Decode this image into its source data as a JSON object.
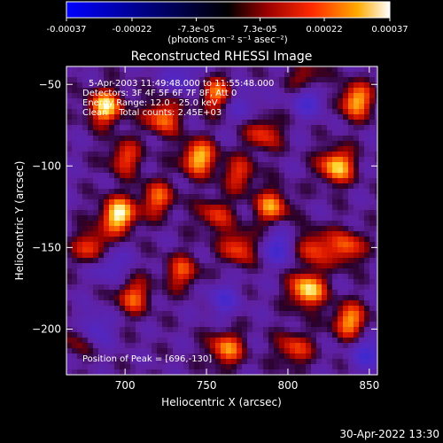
{
  "colorbar": {
    "tick_labels": [
      "-0.00037",
      "-0.00022",
      "-7.3e-05",
      "7.3e-05",
      "0.00022",
      "0.00037"
    ],
    "tick_values": [
      -0.00037,
      -0.00022,
      -7.3e-05,
      7.3e-05,
      0.00022,
      0.00037
    ],
    "range": [
      -0.00037,
      0.00037
    ],
    "unit_label": "(photons cm⁻² s⁻¹ asec⁻²)",
    "colors": [
      "#0000ff",
      "#000000",
      "#9b0000",
      "#ff2a00",
      "#ffaa00",
      "#ffffff"
    ]
  },
  "chart_data": {
    "type": "heatmap",
    "title": "Reconstructed RHESSI Image",
    "xlabel": "Heliocentric X (arcsec)",
    "ylabel": "Heliocentric Y (arcsec)",
    "xlim": [
      664,
      855
    ],
    "ylim": [
      -228,
      -39
    ],
    "xticks": [
      700,
      750,
      800,
      850
    ],
    "xtick_labels": [
      "700",
      "750",
      "800",
      "850"
    ],
    "yticks": [
      -50,
      -100,
      -150,
      -200
    ],
    "ytick_labels": [
      "−50",
      "−100",
      "−150",
      "−200"
    ],
    "annotations": [
      "5-Apr-2003 11:49:48.000 to 11:55:48.000",
      "Detectors: 3F 4F 5F 6F 7F 8F, Att 0",
      "Energy Range: 12.0 - 25.0 keV",
      "Clean    Total counts: 2.45E+03"
    ],
    "peak_label": "Position of Peak = [696,-130]",
    "peak": [
      696,
      -130
    ],
    "hot_spots": [
      {
        "x": 696,
        "y": -130,
        "v": 1.0
      },
      {
        "x": 812,
        "y": -176,
        "v": 0.95
      },
      {
        "x": 688,
        "y": -64,
        "v": 0.9
      },
      {
        "x": 745,
        "y": -95,
        "v": 0.85
      },
      {
        "x": 830,
        "y": -100,
        "v": 0.88
      },
      {
        "x": 842,
        "y": -60,
        "v": 0.8
      },
      {
        "x": 723,
        "y": -70,
        "v": 0.7
      },
      {
        "x": 756,
        "y": -56,
        "v": 0.65
      },
      {
        "x": 785,
        "y": -80,
        "v": 0.55
      },
      {
        "x": 790,
        "y": -125,
        "v": 0.7
      },
      {
        "x": 770,
        "y": -150,
        "v": 0.6
      },
      {
        "x": 735,
        "y": -165,
        "v": 0.55
      },
      {
        "x": 705,
        "y": -180,
        "v": 0.6
      },
      {
        "x": 680,
        "y": -150,
        "v": 0.65
      },
      {
        "x": 762,
        "y": -212,
        "v": 0.7
      },
      {
        "x": 838,
        "y": -195,
        "v": 0.75
      },
      {
        "x": 804,
        "y": -212,
        "v": 0.55
      },
      {
        "x": 836,
        "y": -150,
        "v": 0.65
      },
      {
        "x": 720,
        "y": -120,
        "v": 0.6
      },
      {
        "x": 700,
        "y": -95,
        "v": 0.55
      },
      {
        "x": 770,
        "y": -105,
        "v": 0.5
      },
      {
        "x": 812,
        "y": -48,
        "v": 0.55
      },
      {
        "x": 672,
        "y": -205,
        "v": 0.45
      },
      {
        "x": 815,
        "y": -150,
        "v": 0.6
      },
      {
        "x": 755,
        "y": -130,
        "v": 0.5
      }
    ],
    "cold_spots": [
      {
        "x": 813,
        "y": -58,
        "v": -0.6
      },
      {
        "x": 795,
        "y": -150,
        "v": -0.5
      },
      {
        "x": 680,
        "y": -200,
        "v": -0.55
      },
      {
        "x": 690,
        "y": -160,
        "v": -0.45
      },
      {
        "x": 760,
        "y": -182,
        "v": -0.4
      },
      {
        "x": 850,
        "y": -215,
        "v": -0.5
      },
      {
        "x": 772,
        "y": -62,
        "v": -0.35
      },
      {
        "x": 735,
        "y": -45,
        "v": -0.4
      }
    ]
  },
  "footer": {
    "timestamp": "30-Apr-2022 13:30"
  }
}
